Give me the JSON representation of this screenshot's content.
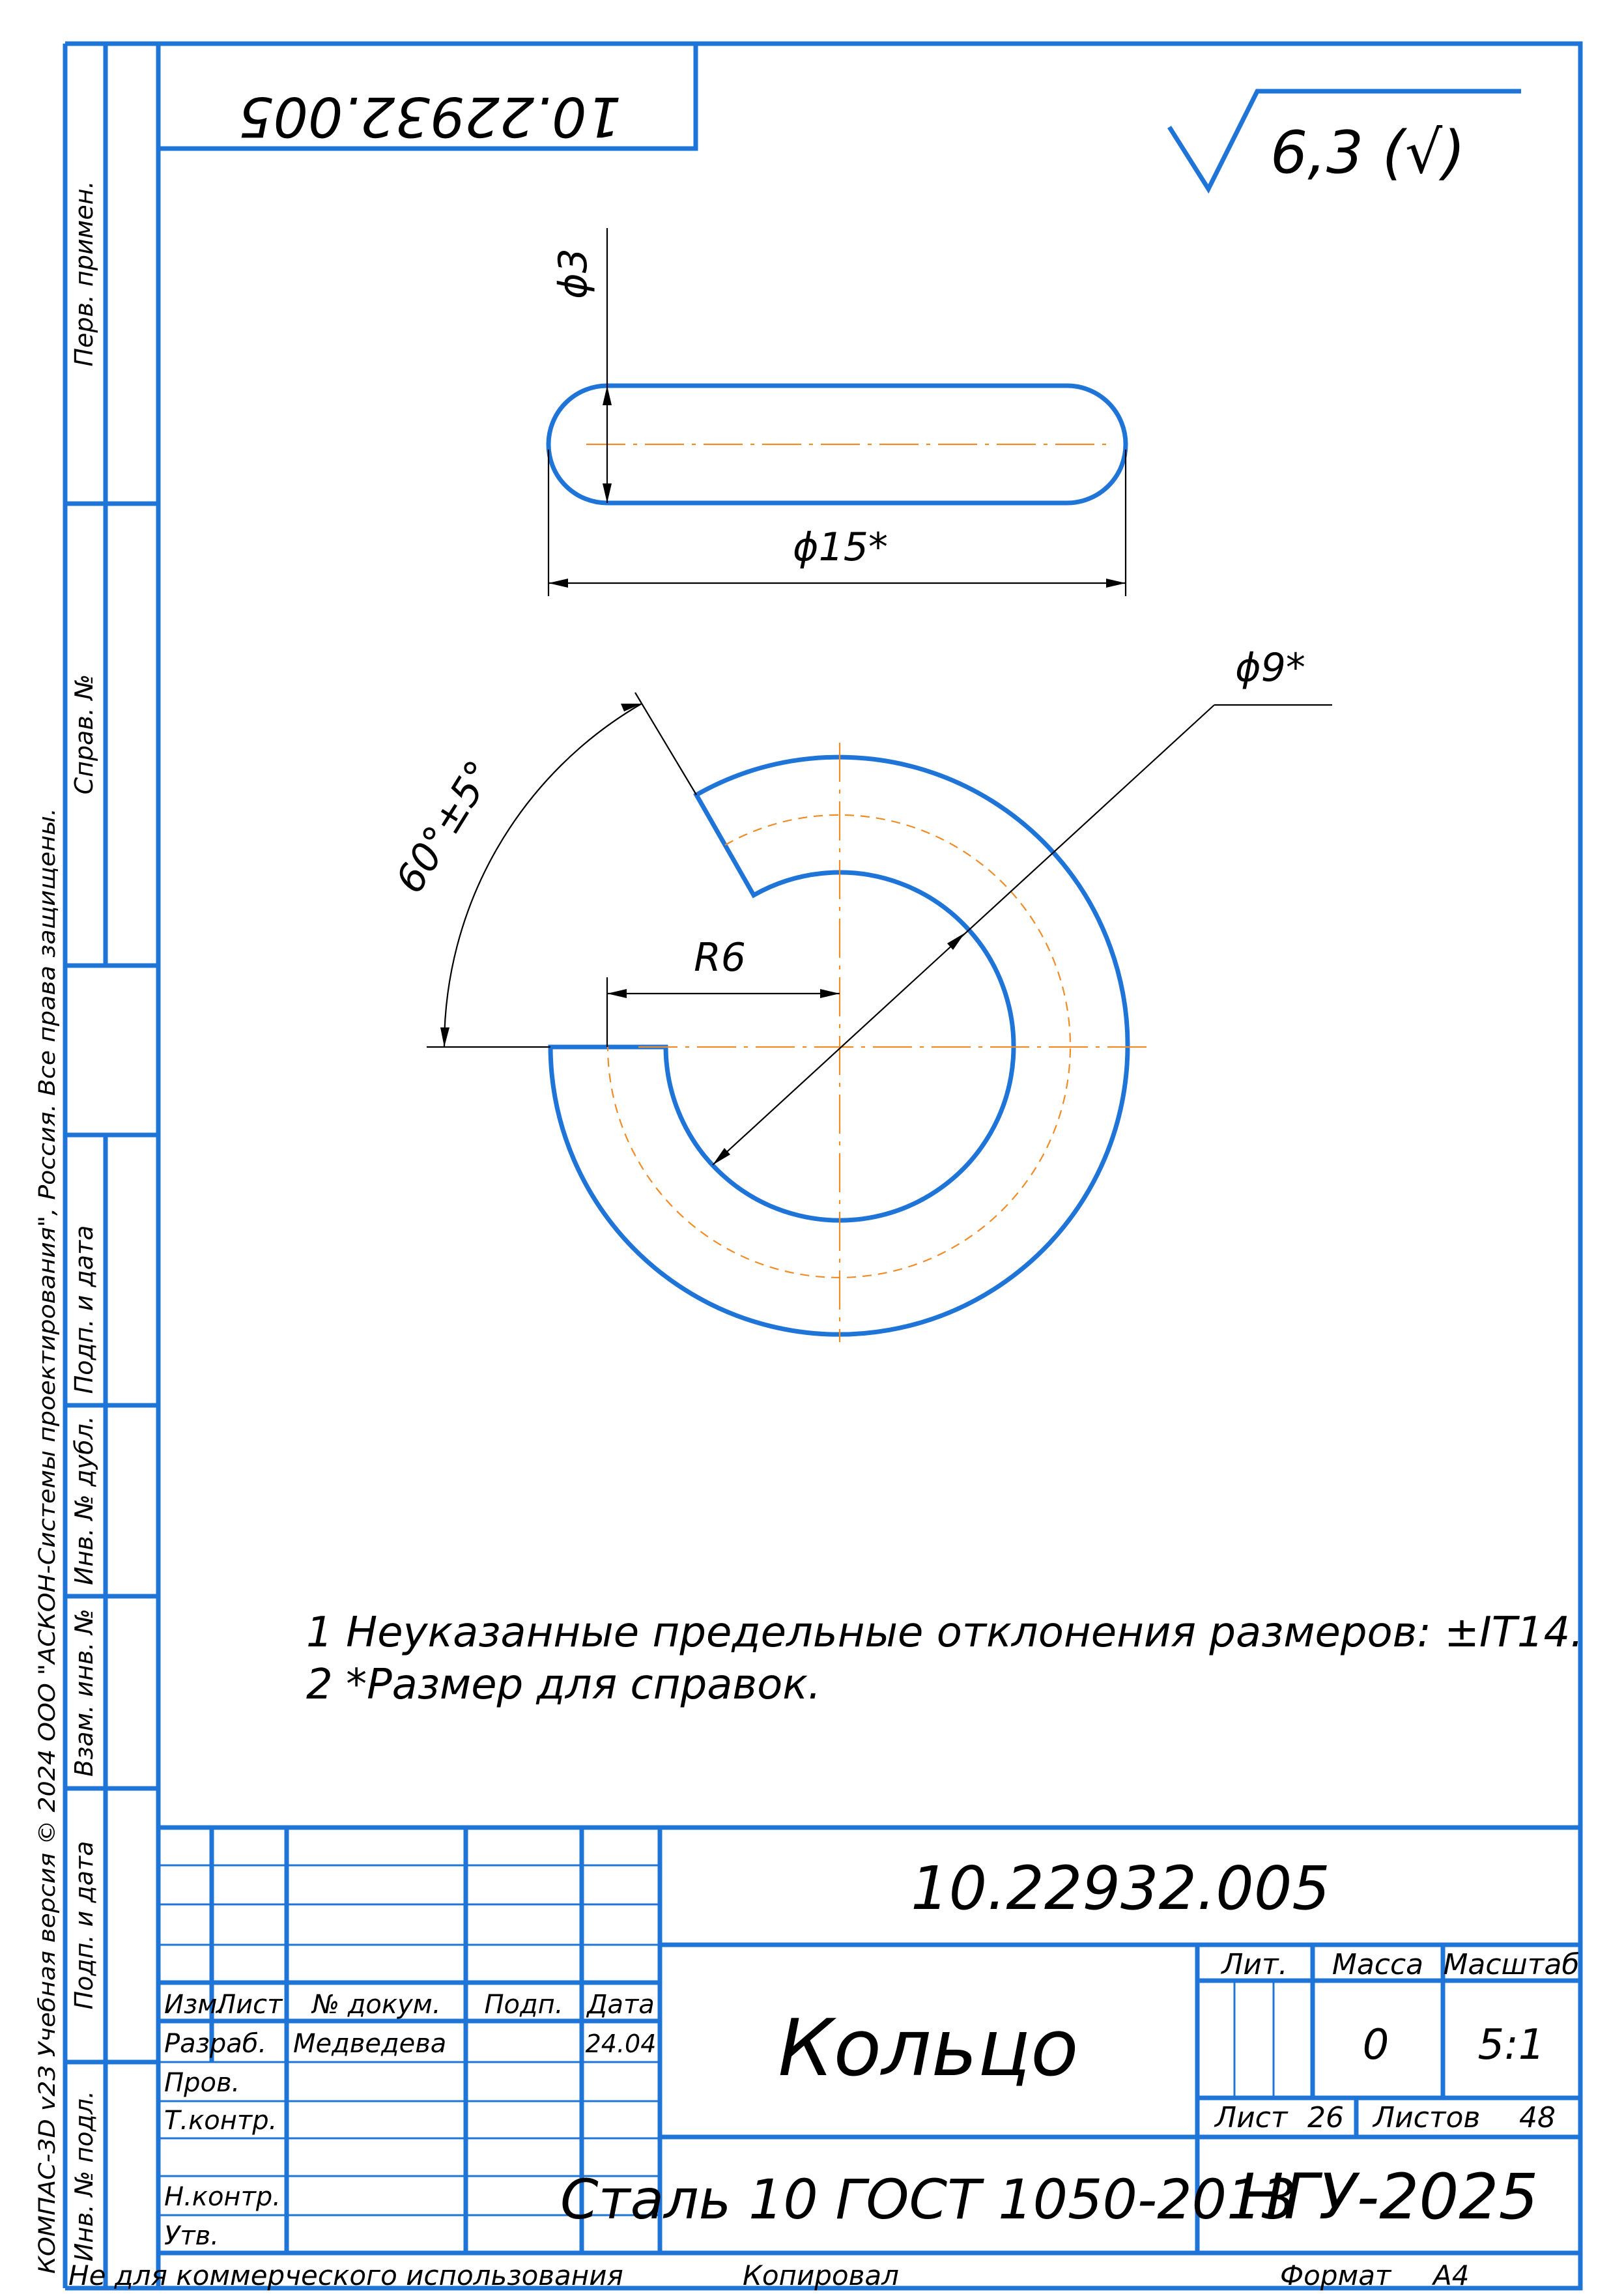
{
  "drawing": {
    "top_designation": "10.22932.005",
    "roughness": "6,3 (√)"
  },
  "dimensions": {
    "d3": "ϕ3",
    "d15": "ϕ15*",
    "d9": "ϕ9*",
    "r6": "R6",
    "angle": "60°±5°"
  },
  "notes": [
    "1 Неуказанные предельные отклонения размеров: ±IT14.",
    "2  *Размер для справок."
  ],
  "side_panel": {
    "copyright": "КОМПАС-3D v23 Учебная версия © 2024 ООО \"АСКОН-Системы проектирования\", Россия. Все права защищены.",
    "perv_primen": "Перв. примен.",
    "sprav_no": "Справ. №",
    "podp_data_1": "Подп. и дата",
    "inv_dubl": "Инв. № дубл.",
    "vzam_inv": "Взам. инв. №",
    "podp_data_2": "Подп. и дата",
    "inv_podl": "Инв. № подл."
  },
  "title_block": {
    "designation": "10.22932.005",
    "name": "Кольцо",
    "material": "Сталь 10 ГОСТ 1050-2013",
    "organization": "НГУ-2025",
    "hdr_izm": "Изм.",
    "hdr_list": "Лист",
    "hdr_dokum": "№ докум.",
    "hdr_podp": "Подп.",
    "hdr_data": "Дата",
    "razrab_label": "Разраб.",
    "razrab_name": "Медведева",
    "razrab_date": "24.04",
    "prov_label": "Пров.",
    "tkontr_label": "Т.контр.",
    "nkontr_label": "Н.контр.",
    "utv_label": "Утв.",
    "lit_label": "Лит.",
    "massa_label": "Масса",
    "masshtab_label": "Масштаб",
    "massa_value": "0",
    "masshtab_value": "5:1",
    "list_label": "Лист",
    "list_value": "26",
    "listov_label": "Листов",
    "listov_value": "48"
  },
  "footer": {
    "not_commercial": "Не для коммерческого использования",
    "kopiroval": "Копировал",
    "format_label": "Формат",
    "format_value": "A4"
  }
}
